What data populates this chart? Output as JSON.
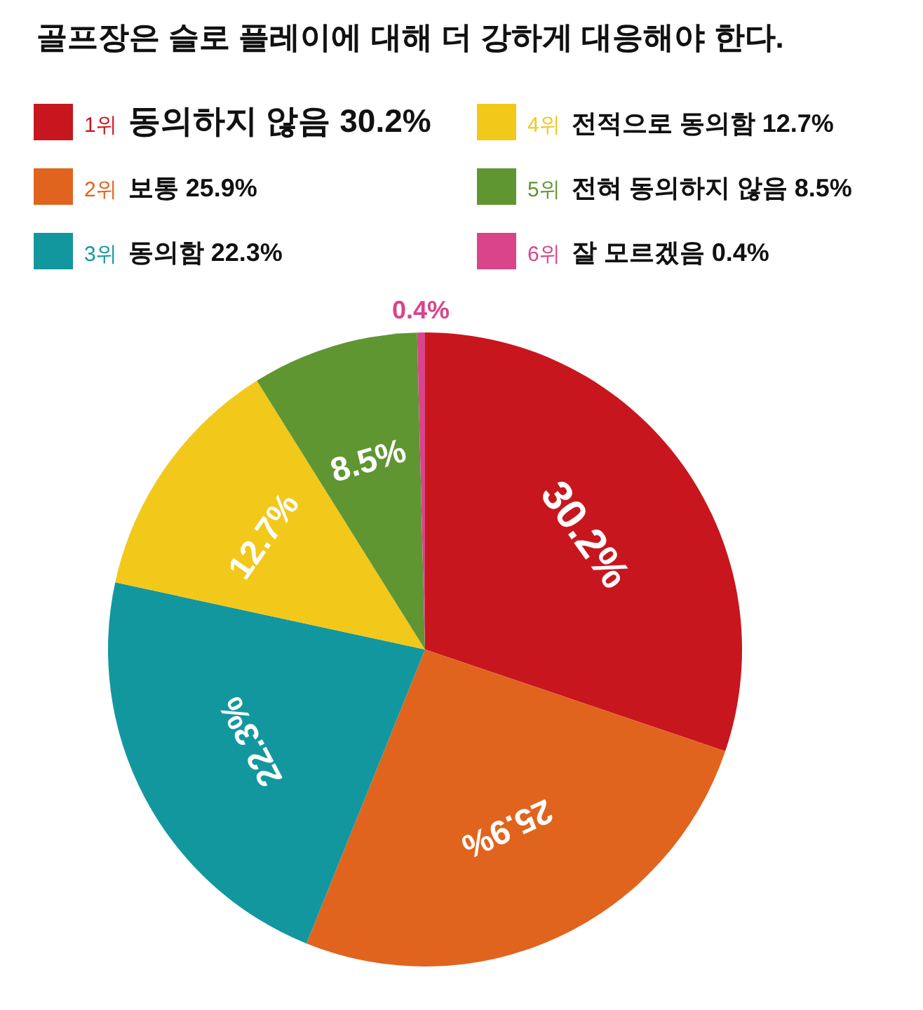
{
  "chart_data": {
    "type": "pie",
    "title": "골프장은 슬로 플레이에 대해 더 강하게 대응해야 한다.",
    "categories": [
      "1위 동의하지 않음",
      "2위 보통",
      "3위 동의함",
      "4위 전적으로 동의함",
      "5위 전혀 동의하지 않음",
      "6위 잘 모르겠음"
    ],
    "values": [
      30.2,
      25.9,
      22.3,
      12.7,
      8.5,
      0.4
    ],
    "colors": [
      "#c8161e",
      "#e0641e",
      "#13979f",
      "#f2c81a",
      "#5f9632",
      "#d9448b"
    ],
    "value_labels": [
      "30.2%",
      "25.9%",
      "22.3%",
      "12.7%",
      "8.5%",
      "0.4%"
    ],
    "legend": "top"
  }
}
